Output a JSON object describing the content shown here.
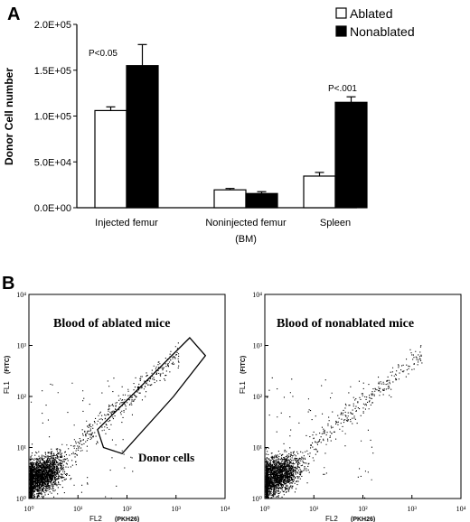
{
  "chart_data": [
    {
      "panel": "A",
      "type": "bar",
      "ylabel": "Donor Cell number",
      "yticks": [
        "0.0E+00",
        "5.0E+04",
        "1.0E+05",
        "1.5E+05",
        "2.0E+05"
      ],
      "ylim": [
        0,
        200000
      ],
      "categories": [
        "Injected femur",
        "Noninjected femur",
        "Spleen"
      ],
      "xnote": "(BM)",
      "series": [
        {
          "name": "Ablated",
          "color": "#ffffff",
          "values": [
            106000,
            19500,
            34500
          ],
          "errors": [
            4000,
            1500,
            4000
          ]
        },
        {
          "name": "Nonablated",
          "color": "#000000",
          "values": [
            155000,
            15500,
            115000
          ],
          "errors": [
            23000,
            2000,
            6000
          ]
        }
      ],
      "annotations": [
        {
          "category": "Injected femur",
          "text": "P<0.05"
        },
        {
          "category": "Spleen",
          "text": "P<.001"
        }
      ],
      "legend": "top-right",
      "grid": false
    },
    {
      "panel": "B",
      "type": "scatter",
      "title": "Blood of ablated mice",
      "xlabel": "FL2",
      "xlabel_note": "(PKH26)",
      "ylabel": "FL1",
      "ylabel_note": "(FITC)",
      "scale": "log",
      "xticks": [
        "10⁰",
        "10¹",
        "10²",
        "10³",
        "10⁴"
      ],
      "yticks": [
        "10⁰",
        "10¹",
        "10²",
        "10³",
        "10⁴"
      ],
      "gate_label": "Donor cells"
    },
    {
      "panel": "B",
      "type": "scatter",
      "title": "Blood of nonablated mice",
      "xlabel": "FL2",
      "xlabel_note": "(PKH26)",
      "ylabel": "FL1",
      "ylabel_note": "(FITC)",
      "scale": "log",
      "xticks": [
        "10⁰",
        "10¹",
        "10²",
        "10³",
        "10⁴"
      ],
      "yticks": [
        "10⁰",
        "10¹",
        "10²",
        "10³",
        "10⁴"
      ]
    }
  ],
  "panel_labels": {
    "a": "A",
    "b": "B"
  }
}
